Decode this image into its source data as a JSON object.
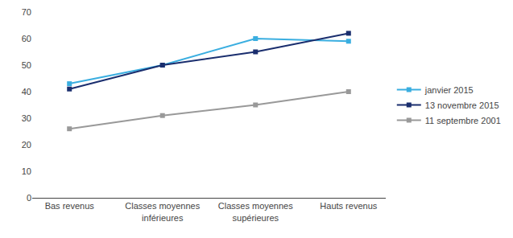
{
  "chart_data": {
    "type": "line",
    "categories": [
      "Bas revenus",
      "Classes moyennes\ninférieures",
      "Classes moyennes\nsupérieures",
      "Hauts revenus"
    ],
    "series": [
      {
        "name": "janvier 2015",
        "color": "#3aaee0",
        "values": [
          43,
          50,
          60,
          59
        ],
        "marker": "square",
        "line_style": "solid"
      },
      {
        "name": "13 novembre 2015",
        "color": "#1a2e6e",
        "values": [
          41,
          50,
          55,
          62
        ],
        "marker": "square",
        "line_style": "solid"
      },
      {
        "name": "11 septembre 2001",
        "color": "#999999",
        "values": [
          26,
          31,
          35,
          40
        ],
        "marker": "square",
        "line_style": "solid"
      }
    ],
    "ylim": [
      0,
      70
    ],
    "yticks": [
      0,
      10,
      20,
      30,
      40,
      50,
      60,
      70
    ],
    "grid": false,
    "legend": "right"
  }
}
